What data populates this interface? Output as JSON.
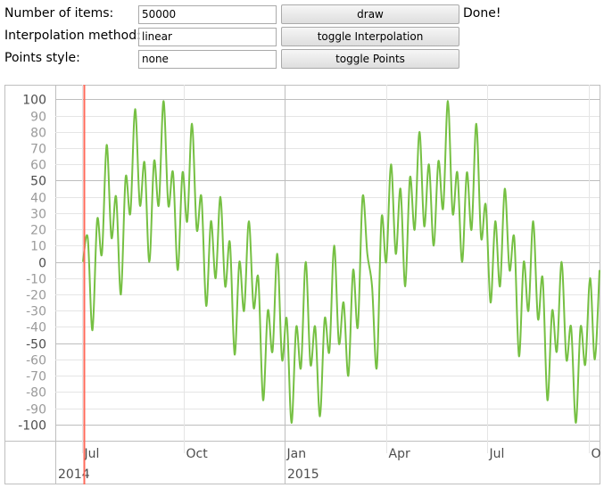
{
  "form": {
    "rows": [
      {
        "label": "Number of items:",
        "input": "50000",
        "button": "draw"
      },
      {
        "label": "Interpolation method:",
        "input": "linear",
        "button": "toggle Interpolation"
      },
      {
        "label": "Points style:",
        "input": "none",
        "button": "toggle Points"
      }
    ],
    "status": "Done!"
  },
  "chart_data": {
    "type": "line",
    "series": [
      {
        "color": "#76c043",
        "values": [
          0,
          15,
          -42,
          26,
          5,
          72,
          15,
          40,
          -20,
          52,
          30,
          94,
          35,
          61,
          0,
          62,
          35,
          99,
          35,
          55,
          -5,
          55,
          25,
          85,
          20,
          40,
          -27,
          25,
          -10,
          40,
          -15,
          12,
          -57,
          0,
          -30,
          25,
          -28,
          -10,
          -85,
          -30,
          -55,
          5,
          -60,
          -35,
          -99,
          -40,
          -65,
          0,
          -63,
          -40,
          -95,
          -35,
          -55,
          10,
          -50,
          -25,
          -70,
          -5,
          -40,
          40,
          5,
          -15,
          -65,
          27,
          0,
          60,
          5,
          45,
          -15,
          52,
          20,
          80,
          22,
          60,
          10,
          62,
          33,
          99,
          30,
          55,
          0,
          55,
          20,
          85,
          15,
          35,
          -25,
          25,
          -15,
          45,
          -5,
          15,
          -58,
          0,
          -30,
          25,
          -35,
          -10,
          -85,
          -30,
          -55,
          0,
          -60,
          -40,
          -99,
          -40,
          -63,
          -10,
          -60,
          -5
        ]
      }
    ],
    "ylim": [
      -110,
      109
    ],
    "yticks": [
      100,
      90,
      80,
      70,
      60,
      50,
      40,
      30,
      20,
      10,
      0,
      -10,
      -20,
      -30,
      -40,
      -50,
      -60,
      -70,
      -80,
      -90,
      -100
    ],
    "x_tick_labels": [
      "Jul",
      "Oct",
      "Jan",
      "Apr",
      "Jul",
      "O"
    ],
    "x_year_labels": [
      "2014",
      "2015"
    ],
    "grid": true
  }
}
